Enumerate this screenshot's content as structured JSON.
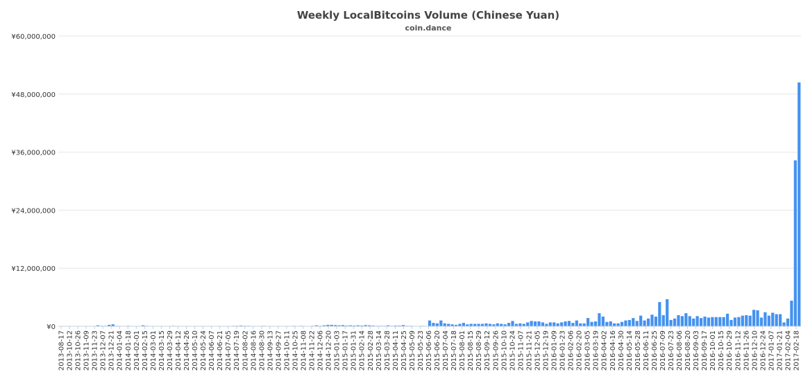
{
  "chart_data": {
    "type": "bar",
    "title": "Weekly LocalBitcoins Volume (Chinese Yuan)",
    "subtitle": "coin.dance",
    "ylim": [
      0,
      60000000
    ],
    "yticks": [
      "¥0",
      "¥12,000,000",
      "¥24,000,000",
      "¥36,000,000",
      "¥48,000,000",
      "¥60,000,000"
    ],
    "grid": true,
    "bar_color": "#4492f0",
    "start_date": "2013-08-17",
    "xtick_labels": [
      "2013-08-17",
      "2013-10-12",
      "2013-10-26",
      "2013-11-09",
      "2013-11-23",
      "2013-12-07",
      "2013-12-21",
      "2014-01-04",
      "2014-01-18",
      "2014-02-01",
      "2014-02-15",
      "2014-03-01",
      "2014-03-15",
      "2014-03-29",
      "2014-04-12",
      "2014-04-26",
      "2014-05-10",
      "2014-05-24",
      "2014-06-07",
      "2014-06-21",
      "2014-07-05",
      "2014-07-19",
      "2014-08-02",
      "2014-08-16",
      "2014-08-30",
      "2014-09-13",
      "2014-09-27",
      "2014-10-11",
      "2014-10-25",
      "2014-11-08",
      "2014-11-22",
      "2014-12-06",
      "2014-12-20",
      "2015-01-03",
      "2015-01-17",
      "2015-01-31",
      "2015-02-14",
      "2015-02-28",
      "2015-03-14",
      "2015-03-28",
      "2015-04-11",
      "2015-04-25",
      "2015-05-09",
      "2015-05-23",
      "2015-06-06",
      "2015-06-20",
      "2015-07-04",
      "2015-07-18",
      "2015-08-01",
      "2015-08-15",
      "2015-08-29",
      "2015-09-12",
      "2015-09-26",
      "2015-10-10",
      "2015-10-24",
      "2015-11-07",
      "2015-11-21",
      "2015-12-05",
      "2015-12-19",
      "2016-01-09",
      "2016-01-23",
      "2016-02-06",
      "2016-02-20",
      "2016-03-05",
      "2016-03-19",
      "2016-04-02",
      "2016-04-16",
      "2016-04-30",
      "2016-05-14",
      "2016-05-28",
      "2016-06-11",
      "2016-06-25",
      "2016-07-09",
      "2016-07-23",
      "2016-08-06",
      "2016-08-20",
      "2016-09-03",
      "2016-09-17",
      "2016-10-01",
      "2016-10-15",
      "2016-10-29",
      "2016-11-12",
      "2016-11-26",
      "2016-12-10",
      "2016-12-24",
      "2017-01-07",
      "2017-01-21",
      "2017-02-04",
      "2017-02-18"
    ],
    "values": [
      0,
      0,
      0,
      0,
      0,
      0,
      0,
      0,
      0,
      0,
      200000,
      100000,
      100000,
      300000,
      400000,
      100000,
      0,
      0,
      100000,
      0,
      0,
      0,
      200000,
      100000,
      0,
      0,
      0,
      0,
      50000,
      0,
      100000,
      0,
      50000,
      0,
      0,
      0,
      50000,
      0,
      0,
      0,
      0,
      0,
      50000,
      0,
      0,
      0,
      100000,
      100000,
      150000,
      100000,
      100000,
      50000,
      0,
      50000,
      100000,
      0,
      0,
      50000,
      0,
      0,
      0,
      0,
      100000,
      50000,
      100000,
      50000,
      0,
      100000,
      200000,
      100000,
      200000,
      300000,
      300000,
      250000,
      200000,
      250000,
      150000,
      200000,
      150000,
      200000,
      150000,
      250000,
      200000,
      150000,
      100000,
      100000,
      100000,
      200000,
      100000,
      150000,
      150000,
      250000,
      100000,
      100000,
      50000,
      50000,
      100000,
      50000,
      1200000,
      700000,
      600000,
      1200000,
      600000,
      500000,
      400000,
      300000,
      500000,
      700000,
      400000,
      500000,
      500000,
      500000,
      500000,
      600000,
      500000,
      400000,
      600000,
      500000,
      400000,
      700000,
      1100000,
      500000,
      600000,
      500000,
      800000,
      1100000,
      1000000,
      1000000,
      800000,
      500000,
      800000,
      800000,
      600000,
      800000,
      1000000,
      1100000,
      700000,
      1200000,
      600000,
      600000,
      1700000,
      900000,
      1000000,
      2700000,
      2000000,
      900000,
      1000000,
      600000,
      600000,
      900000,
      1200000,
      1300000,
      1700000,
      1100000,
      2200000,
      1200000,
      1600000,
      2400000,
      2000000,
      5000000,
      2300000,
      5600000,
      1300000,
      1600000,
      2300000,
      2100000,
      2700000,
      2100000,
      1600000,
      2100000,
      1700000,
      2000000,
      1800000,
      1900000,
      1900000,
      1900000,
      1900000,
      2600000,
      1300000,
      1800000,
      1900000,
      2200000,
      2300000,
      2200000,
      3400000,
      3300000,
      1800000,
      2900000,
      2200000,
      2800000,
      2500000,
      2500000,
      800000,
      1600000,
      5300000,
      34300000,
      50400000
    ]
  }
}
